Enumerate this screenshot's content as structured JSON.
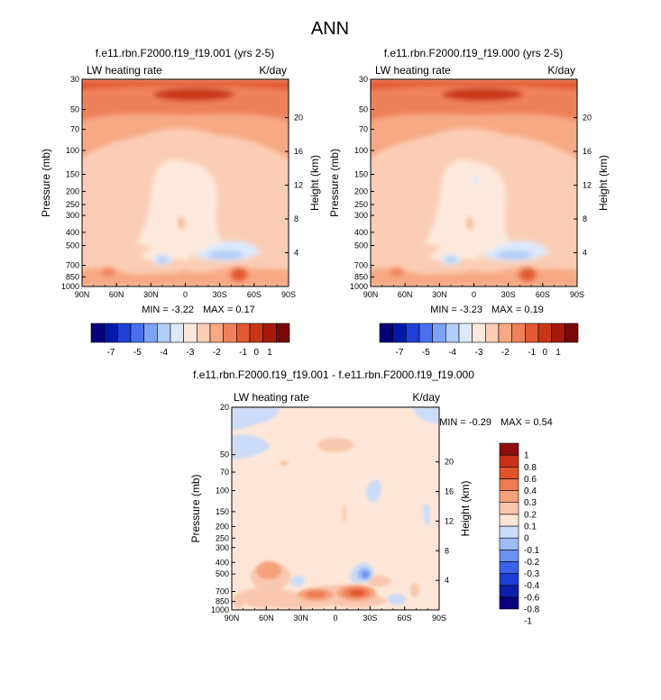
{
  "title": "ANN",
  "palettes": {
    "main": [
      "#08007a",
      "#0018a8",
      "#1f3fd9",
      "#4a70f0",
      "#7ea3f5",
      "#b0cdf7",
      "#dde9fb",
      "#fde9dc",
      "#fbcdb5",
      "#f7a983",
      "#ef815a",
      "#e35a32",
      "#c93617",
      "#a51a0b",
      "#7a0707"
    ],
    "diff": [
      "#08007a",
      "#0d1ea8",
      "#1c3ed6",
      "#3b62ea",
      "#6b90f2",
      "#9ebbf6",
      "#cbdcf8",
      "#fde6d7",
      "#f9c7ad",
      "#f5a27c",
      "#ee7b52",
      "#e2522b",
      "#c9301a",
      "#8e0f0f"
    ]
  },
  "chart_data": [
    {
      "type": "contour",
      "title": "f.e11.rbn.F2000.f19_f19.001 (yrs 2-5)",
      "left_label": "LW heating rate",
      "right_label": "K/day",
      "xlabel": "",
      "ylabel": "Pressure (mb)",
      "ylabel_right": "Height (km)",
      "x_ticks": [
        "90N",
        "60N",
        "30N",
        "0",
        "30S",
        "60S",
        "90S"
      ],
      "y_ticks": [
        "30",
        "50",
        "70",
        "100",
        "150",
        "200",
        "250",
        "300",
        "400",
        "500",
        "700",
        "850",
        "1000"
      ],
      "height_ticks": [
        "20",
        "16",
        "12",
        "8",
        "4"
      ],
      "min_label": "MIN =",
      "min_value": "-3.22",
      "max_label": "MAX =",
      "max_value": "0.17",
      "colorbar_labels": [
        "-7",
        "-5",
        "-4",
        "-3",
        "-2",
        "-1",
        "0",
        "1"
      ],
      "xlim": [
        90,
        -90
      ],
      "ylim": [
        1000,
        30
      ]
    },
    {
      "type": "contour",
      "title": "f.e11.rbn.F2000.f19_f19.000 (yrs 2-5)",
      "left_label": "LW heating rate",
      "right_label": "K/day",
      "xlabel": "",
      "ylabel": "Pressure (mb)",
      "ylabel_right": "Height (km)",
      "x_ticks": [
        "90N",
        "60N",
        "30N",
        "0",
        "30S",
        "60S",
        "90S"
      ],
      "y_ticks": [
        "30",
        "50",
        "70",
        "100",
        "150",
        "200",
        "250",
        "300",
        "400",
        "500",
        "700",
        "850",
        "1000"
      ],
      "height_ticks": [
        "20",
        "16",
        "12",
        "8",
        "4"
      ],
      "min_label": "MIN =",
      "min_value": "-3.23",
      "max_label": "MAX =",
      "max_value": "0.19",
      "colorbar_labels": [
        "-7",
        "-5",
        "-4",
        "-3",
        "-2",
        "-1",
        "0",
        "1"
      ],
      "xlim": [
        90,
        -90
      ],
      "ylim": [
        1000,
        30
      ]
    },
    {
      "type": "contour",
      "title": "f.e11.rbn.F2000.f19_f19.001 - f.e11.rbn.F2000.f19_f19.000",
      "left_label": "LW heating rate",
      "right_label": "K/day",
      "xlabel": "",
      "ylabel": "Pressure (mb)",
      "ylabel_right": "Height (km)",
      "x_ticks": [
        "90N",
        "60N",
        "30N",
        "0",
        "30S",
        "60S",
        "90S"
      ],
      "y_ticks": [
        "20",
        "50",
        "70",
        "100",
        "150",
        "200",
        "250",
        "300",
        "400",
        "500",
        "700",
        "850",
        "1000"
      ],
      "height_ticks": [
        "20",
        "16",
        "12",
        "8",
        "4"
      ],
      "min_label": "MIN =",
      "min_value": "-0.29",
      "max_label": "MAX =",
      "max_value": "0.54",
      "colorbar_labels": [
        "1",
        "0.8",
        "0.6",
        "0.4",
        "0.3",
        "0.2",
        "0.1",
        "0",
        "-0.1",
        "-0.2",
        "-0.3",
        "-0.4",
        "-0.6",
        "-0.8",
        "-1"
      ],
      "xlim": [
        90,
        -90
      ],
      "ylim": [
        1000,
        20
      ]
    }
  ]
}
